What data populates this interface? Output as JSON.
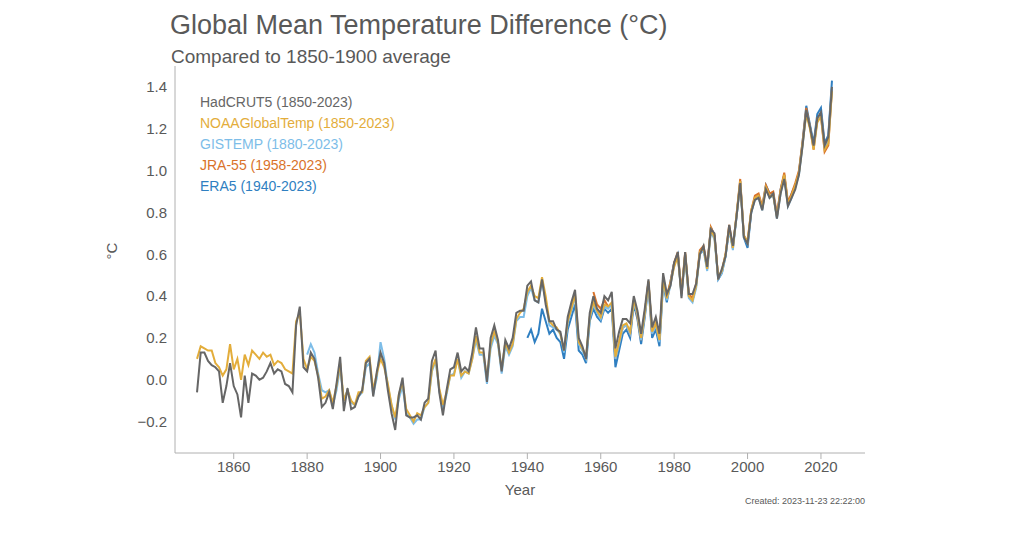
{
  "chart_data": {
    "type": "line",
    "title": "Global Mean Temperature Difference (°C)",
    "subtitle": "Compared to 1850-1900 average",
    "x_label": "Year",
    "y_label": "°C",
    "annotation": "Created: 2023-11-23 22:22:00",
    "legend": "upper left",
    "grid": false,
    "xlim": [
      1844,
      2032
    ],
    "xticks": [
      1860,
      1880,
      1900,
      1920,
      1940,
      1960,
      1980,
      2000,
      2020
    ],
    "ylim": [
      -0.35,
      1.5
    ],
    "yticks": [
      {
        "value": -0.2,
        "label": "−0.2"
      },
      {
        "value": 0,
        "label": "0.0"
      },
      0.2,
      0.4,
      0.6,
      0.8,
      {
        "value": 1,
        "label": "1.0"
      },
      1.2,
      1.4
    ],
    "x": [
      1850,
      1851,
      1852,
      1853,
      1854,
      1855,
      1856,
      1857,
      1858,
      1859,
      1860,
      1861,
      1862,
      1863,
      1864,
      1865,
      1866,
      1867,
      1868,
      1869,
      1870,
      1871,
      1872,
      1873,
      1874,
      1875,
      1876,
      1877,
      1878,
      1879,
      1880,
      1881,
      1882,
      1883,
      1884,
      1885,
      1886,
      1887,
      1888,
      1889,
      1890,
      1891,
      1892,
      1893,
      1894,
      1895,
      1896,
      1897,
      1898,
      1899,
      1900,
      1901,
      1902,
      1903,
      1904,
      1905,
      1906,
      1907,
      1908,
      1909,
      1910,
      1911,
      1912,
      1913,
      1914,
      1915,
      1916,
      1917,
      1918,
      1919,
      1920,
      1921,
      1922,
      1923,
      1924,
      1925,
      1926,
      1927,
      1928,
      1929,
      1930,
      1931,
      1932,
      1933,
      1934,
      1935,
      1936,
      1937,
      1938,
      1939,
      1940,
      1941,
      1942,
      1943,
      1944,
      1945,
      1946,
      1947,
      1948,
      1949,
      1950,
      1951,
      1952,
      1953,
      1954,
      1955,
      1956,
      1957,
      1958,
      1959,
      1960,
      1961,
      1962,
      1963,
      1964,
      1965,
      1966,
      1967,
      1968,
      1969,
      1970,
      1971,
      1972,
      1973,
      1974,
      1975,
      1976,
      1977,
      1978,
      1979,
      1980,
      1981,
      1982,
      1983,
      1984,
      1985,
      1986,
      1987,
      1988,
      1989,
      1990,
      1991,
      1992,
      1993,
      1994,
      1995,
      1996,
      1997,
      1998,
      1999,
      2000,
      2001,
      2002,
      2003,
      2004,
      2005,
      2006,
      2007,
      2008,
      2009,
      2010,
      2011,
      2012,
      2013,
      2014,
      2015,
      2016,
      2017,
      2018,
      2019,
      2020,
      2021,
      2022,
      2023
    ],
    "series": [
      {
        "name": "HadCRUT5 (1850-2023)",
        "color": "#666666",
        "values": [
          -0.06,
          0.13,
          0.13,
          0.09,
          0.07,
          0.06,
          0.04,
          -0.11,
          -0.03,
          0.08,
          -0.03,
          -0.07,
          -0.18,
          0.02,
          -0.11,
          0.03,
          0.02,
          0.0,
          0.01,
          0.04,
          0.08,
          0.03,
          0.05,
          0.04,
          -0.02,
          -0.03,
          -0.06,
          0.26,
          0.35,
          0.06,
          0.04,
          0.13,
          0.1,
          0.01,
          -0.13,
          -0.11,
          -0.06,
          -0.14,
          -0.02,
          0.11,
          -0.15,
          -0.04,
          -0.14,
          -0.13,
          -0.08,
          -0.05,
          0.08,
          0.1,
          -0.08,
          0.04,
          0.13,
          0.08,
          -0.05,
          -0.16,
          -0.24,
          -0.07,
          0.01,
          -0.17,
          -0.18,
          -0.18,
          -0.17,
          -0.19,
          -0.11,
          -0.09,
          0.09,
          0.14,
          -0.06,
          -0.17,
          -0.05,
          0.05,
          0.06,
          0.13,
          0.04,
          0.06,
          0.04,
          0.13,
          0.25,
          0.15,
          0.15,
          -0.01,
          0.2,
          0.26,
          0.19,
          0.04,
          0.19,
          0.15,
          0.2,
          0.32,
          0.33,
          0.33,
          0.45,
          0.47,
          0.38,
          0.37,
          0.48,
          0.36,
          0.28,
          0.28,
          0.24,
          0.23,
          0.14,
          0.3,
          0.37,
          0.43,
          0.2,
          0.16,
          0.1,
          0.32,
          0.4,
          0.34,
          0.32,
          0.4,
          0.38,
          0.42,
          0.15,
          0.23,
          0.29,
          0.29,
          0.27,
          0.4,
          0.33,
          0.22,
          0.34,
          0.48,
          0.25,
          0.3,
          0.22,
          0.51,
          0.41,
          0.45,
          0.56,
          0.61,
          0.39,
          0.61,
          0.41,
          0.41,
          0.46,
          0.6,
          0.64,
          0.54,
          0.72,
          0.7,
          0.48,
          0.53,
          0.59,
          0.74,
          0.64,
          0.78,
          0.94,
          0.68,
          0.65,
          0.8,
          0.86,
          0.87,
          0.81,
          0.91,
          0.87,
          0.89,
          0.77,
          0.89,
          0.96,
          0.83,
          0.87,
          0.91,
          0.98,
          1.12,
          1.29,
          1.21,
          1.12,
          1.25,
          1.28,
          1.12,
          1.16,
          1.4
        ]
      },
      {
        "name": "NOAAGlobalTemp (1850-2023)",
        "color": "#e3ad3b",
        "values": [
          0.1,
          0.16,
          0.15,
          0.14,
          0.14,
          0.08,
          0.06,
          0.02,
          0.05,
          0.17,
          0.05,
          0.1,
          0.0,
          0.12,
          0.07,
          0.14,
          0.12,
          0.1,
          0.13,
          0.11,
          0.12,
          0.07,
          0.09,
          0.08,
          0.05,
          0.04,
          0.03,
          0.28,
          0.32,
          0.1,
          0.05,
          0.11,
          0.09,
          0.02,
          -0.09,
          -0.08,
          -0.05,
          -0.11,
          -0.03,
          0.08,
          -0.1,
          -0.05,
          -0.1,
          -0.12,
          -0.06,
          -0.06,
          0.09,
          0.11,
          -0.05,
          0.03,
          0.1,
          0.06,
          -0.02,
          -0.12,
          -0.18,
          -0.07,
          -0.01,
          -0.14,
          -0.17,
          -0.2,
          -0.16,
          -0.17,
          -0.13,
          -0.11,
          0.05,
          0.1,
          -0.04,
          -0.12,
          -0.06,
          0.02,
          0.02,
          0.1,
          0.02,
          0.04,
          0.03,
          0.1,
          0.21,
          0.13,
          0.13,
          0.01,
          0.17,
          0.23,
          0.18,
          0.05,
          0.18,
          0.13,
          0.17,
          0.29,
          0.32,
          0.34,
          0.42,
          0.45,
          0.4,
          0.39,
          0.49,
          0.4,
          0.28,
          0.26,
          0.25,
          0.22,
          0.14,
          0.28,
          0.34,
          0.41,
          0.18,
          0.15,
          0.11,
          0.3,
          0.37,
          0.33,
          0.3,
          0.36,
          0.35,
          0.37,
          0.11,
          0.18,
          0.26,
          0.27,
          0.23,
          0.38,
          0.32,
          0.2,
          0.32,
          0.47,
          0.23,
          0.27,
          0.19,
          0.48,
          0.39,
          0.46,
          0.54,
          0.59,
          0.41,
          0.6,
          0.4,
          0.38,
          0.45,
          0.61,
          0.63,
          0.53,
          0.72,
          0.68,
          0.49,
          0.52,
          0.6,
          0.73,
          0.63,
          0.79,
          0.95,
          0.69,
          0.66,
          0.81,
          0.87,
          0.88,
          0.82,
          0.92,
          0.88,
          0.88,
          0.78,
          0.9,
          0.98,
          0.84,
          0.88,
          0.93,
          0.99,
          1.13,
          1.27,
          1.2,
          1.1,
          1.23,
          1.26,
          1.1,
          1.13,
          1.38
        ]
      },
      {
        "name": "GISTEMP (1880-2023)",
        "color": "#7dbde8",
        "values": [
          null,
          null,
          null,
          null,
          null,
          null,
          null,
          null,
          null,
          null,
          null,
          null,
          null,
          null,
          null,
          null,
          null,
          null,
          null,
          null,
          null,
          null,
          null,
          null,
          null,
          null,
          null,
          null,
          null,
          null,
          0.12,
          0.17,
          0.13,
          0.03,
          -0.05,
          -0.06,
          -0.05,
          -0.12,
          -0.05,
          0.06,
          -0.1,
          -0.05,
          -0.11,
          -0.12,
          -0.08,
          -0.06,
          0.06,
          0.08,
          -0.07,
          0.01,
          0.18,
          0.1,
          -0.03,
          -0.12,
          -0.19,
          -0.09,
          -0.03,
          -0.16,
          -0.18,
          -0.21,
          -0.19,
          -0.19,
          -0.13,
          -0.11,
          0.04,
          0.09,
          -0.05,
          -0.14,
          -0.07,
          0.02,
          0.03,
          0.1,
          0.01,
          0.04,
          0.03,
          0.1,
          0.19,
          0.12,
          0.12,
          -0.02,
          0.15,
          0.21,
          0.17,
          0.03,
          0.16,
          0.12,
          0.16,
          0.28,
          0.3,
          0.3,
          0.4,
          0.44,
          0.38,
          0.37,
          0.47,
          0.38,
          0.26,
          0.25,
          0.24,
          0.22,
          0.13,
          0.27,
          0.33,
          0.4,
          0.17,
          0.14,
          0.1,
          0.29,
          0.36,
          0.32,
          0.29,
          0.35,
          0.34,
          0.36,
          0.1,
          0.17,
          0.25,
          0.26,
          0.22,
          0.37,
          0.31,
          0.19,
          0.31,
          0.46,
          0.22,
          0.26,
          0.18,
          0.47,
          0.38,
          0.45,
          0.55,
          0.6,
          0.4,
          0.59,
          0.39,
          0.37,
          0.44,
          0.6,
          0.62,
          0.52,
          0.71,
          0.67,
          0.48,
          0.51,
          0.59,
          0.72,
          0.62,
          0.78,
          0.94,
          0.68,
          0.65,
          0.8,
          0.86,
          0.87,
          0.81,
          0.92,
          0.87,
          0.88,
          0.77,
          0.89,
          0.97,
          0.83,
          0.87,
          0.92,
          0.98,
          1.12,
          1.28,
          1.21,
          1.11,
          1.24,
          1.27,
          1.11,
          1.14,
          1.39
        ]
      },
      {
        "name": "JRA-55 (1958-2023)",
        "color": "#d9732b",
        "values": [
          null,
          null,
          null,
          null,
          null,
          null,
          null,
          null,
          null,
          null,
          null,
          null,
          null,
          null,
          null,
          null,
          null,
          null,
          null,
          null,
          null,
          null,
          null,
          null,
          null,
          null,
          null,
          null,
          null,
          null,
          null,
          null,
          null,
          null,
          null,
          null,
          null,
          null,
          null,
          null,
          null,
          null,
          null,
          null,
          null,
          null,
          null,
          null,
          null,
          null,
          null,
          null,
          null,
          null,
          null,
          null,
          null,
          null,
          null,
          null,
          null,
          null,
          null,
          null,
          null,
          null,
          null,
          null,
          null,
          null,
          null,
          null,
          null,
          null,
          null,
          null,
          null,
          null,
          null,
          null,
          null,
          null,
          null,
          null,
          null,
          null,
          null,
          null,
          null,
          null,
          null,
          null,
          null,
          null,
          null,
          null,
          null,
          null,
          null,
          null,
          null,
          null,
          null,
          null,
          null,
          null,
          null,
          null,
          0.42,
          0.36,
          0.34,
          0.38,
          0.35,
          0.36,
          0.1,
          0.18,
          0.25,
          0.26,
          0.22,
          0.38,
          0.3,
          0.19,
          0.32,
          0.47,
          0.22,
          0.27,
          0.19,
          0.49,
          0.4,
          0.47,
          0.56,
          0.61,
          0.42,
          0.61,
          0.41,
          0.39,
          0.46,
          0.62,
          0.64,
          0.54,
          0.73,
          0.69,
          0.49,
          0.52,
          0.6,
          0.74,
          0.63,
          0.79,
          0.96,
          0.69,
          0.66,
          0.81,
          0.88,
          0.89,
          0.83,
          0.93,
          0.89,
          0.9,
          0.79,
          0.91,
          0.99,
          0.85,
          0.89,
          0.94,
          1.0,
          1.14,
          1.3,
          1.21,
          1.1,
          1.25,
          1.26,
          1.09,
          1.12,
          1.39
        ]
      },
      {
        "name": "ERA5 (1940-2023)",
        "color": "#2f7fc1",
        "values": [
          null,
          null,
          null,
          null,
          null,
          null,
          null,
          null,
          null,
          null,
          null,
          null,
          null,
          null,
          null,
          null,
          null,
          null,
          null,
          null,
          null,
          null,
          null,
          null,
          null,
          null,
          null,
          null,
          null,
          null,
          null,
          null,
          null,
          null,
          null,
          null,
          null,
          null,
          null,
          null,
          null,
          null,
          null,
          null,
          null,
          null,
          null,
          null,
          null,
          null,
          null,
          null,
          null,
          null,
          null,
          null,
          null,
          null,
          null,
          null,
          null,
          null,
          null,
          null,
          null,
          null,
          null,
          null,
          null,
          null,
          null,
          null,
          null,
          null,
          null,
          null,
          null,
          null,
          null,
          null,
          null,
          null,
          null,
          null,
          null,
          null,
          null,
          null,
          null,
          null,
          0.2,
          0.24,
          0.18,
          0.22,
          0.34,
          0.28,
          0.22,
          0.24,
          0.2,
          0.18,
          0.1,
          0.24,
          0.3,
          0.36,
          0.14,
          0.12,
          0.08,
          0.28,
          0.34,
          0.3,
          0.28,
          0.34,
          0.32,
          0.34,
          0.06,
          0.14,
          0.22,
          0.24,
          0.2,
          0.36,
          0.29,
          0.17,
          0.3,
          0.45,
          0.2,
          0.24,
          0.16,
          0.46,
          0.37,
          0.47,
          0.56,
          0.6,
          0.41,
          0.6,
          0.4,
          0.38,
          0.45,
          0.61,
          0.63,
          0.53,
          0.73,
          0.69,
          0.48,
          0.51,
          0.59,
          0.72,
          0.63,
          0.78,
          0.95,
          0.68,
          0.63,
          0.8,
          0.87,
          0.88,
          0.82,
          0.93,
          0.89,
          0.89,
          0.78,
          0.91,
          0.98,
          0.84,
          0.89,
          0.93,
          0.99,
          1.14,
          1.31,
          1.22,
          1.13,
          1.27,
          1.3,
          1.13,
          1.17,
          1.43
        ]
      }
    ]
  }
}
